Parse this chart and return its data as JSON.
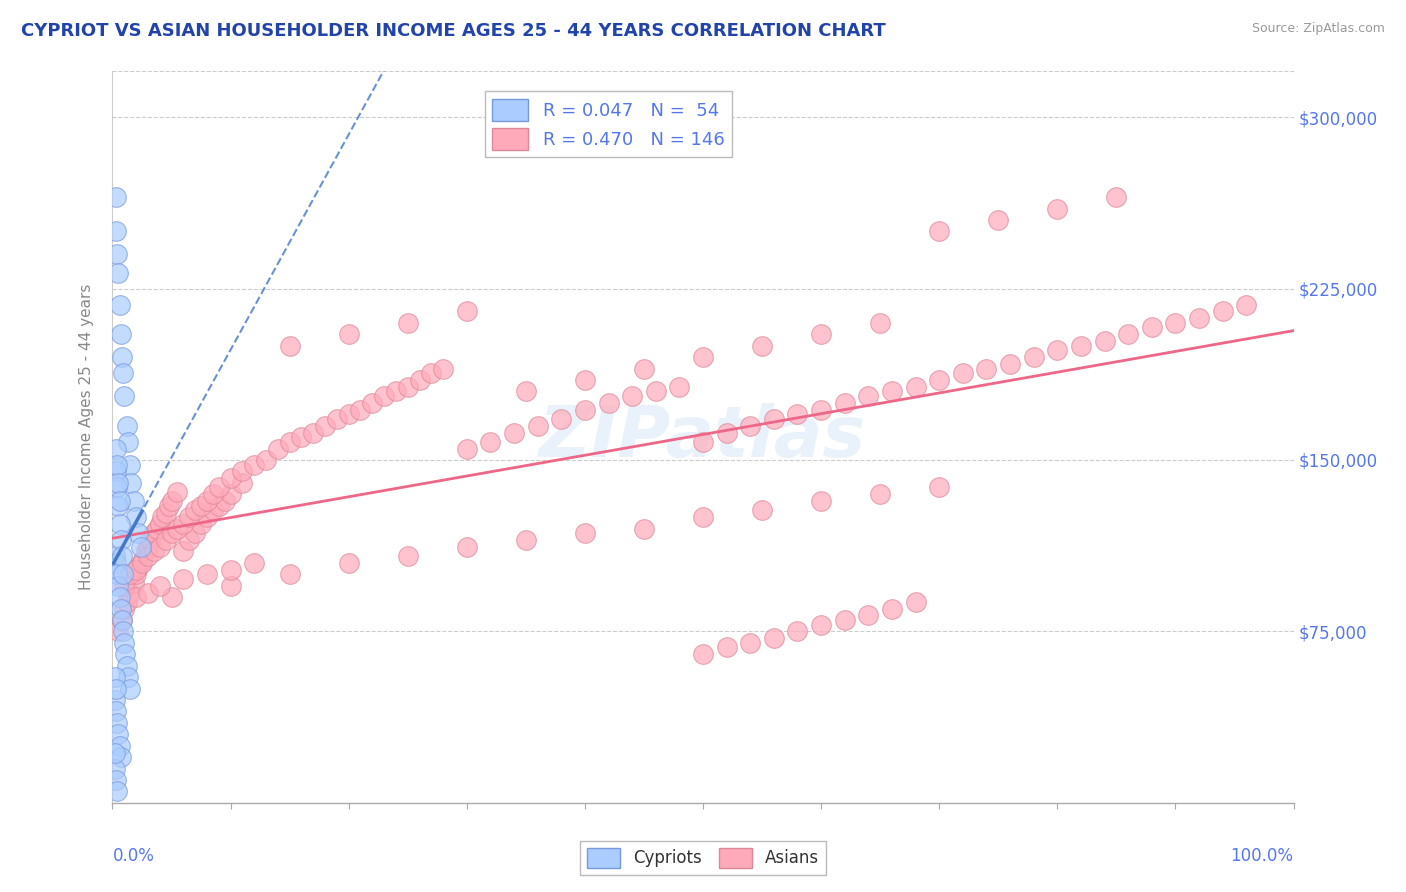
{
  "title": "CYPRIOT VS ASIAN HOUSEHOLDER INCOME AGES 25 - 44 YEARS CORRELATION CHART",
  "source": "Source: ZipAtlas.com",
  "ylabel": "Householder Income Ages 25 - 44 years",
  "y_tick_labels": [
    "$75,000",
    "$150,000",
    "$225,000",
    "$300,000"
  ],
  "y_tick_values": [
    75000,
    150000,
    225000,
    300000
  ],
  "ylim": [
    0,
    320000
  ],
  "xlim": [
    0,
    1.0
  ],
  "title_color": "#2244aa",
  "axis_label_color": "#5577ee",
  "cypriot_color": "#aaccff",
  "asian_color": "#ffaabb",
  "cypriot_edge_color": "#7799dd",
  "asian_edge_color": "#dd8899",
  "cypriot_line_color": "#4477cc",
  "asian_line_color": "#ee6688",
  "watermark": "ZIPatlas",
  "cypriot_x": [
    0.003,
    0.003,
    0.004,
    0.005,
    0.006,
    0.007,
    0.008,
    0.009,
    0.01,
    0.012,
    0.013,
    0.015,
    0.016,
    0.018,
    0.02,
    0.022,
    0.024,
    0.002,
    0.003,
    0.004,
    0.005,
    0.006,
    0.007,
    0.008,
    0.009,
    0.01,
    0.011,
    0.012,
    0.013,
    0.015,
    0.003,
    0.004,
    0.005,
    0.006,
    0.007,
    0.008,
    0.009,
    0.002,
    0.003,
    0.004,
    0.005,
    0.006,
    0.007,
    0.003,
    0.004,
    0.005,
    0.006,
    0.002,
    0.003,
    0.004,
    0.002,
    0.003,
    0.002
  ],
  "cypriot_y": [
    265000,
    250000,
    240000,
    232000,
    218000,
    205000,
    195000,
    188000,
    178000,
    165000,
    158000,
    148000,
    140000,
    132000,
    125000,
    118000,
    112000,
    108000,
    105000,
    100000,
    95000,
    90000,
    85000,
    80000,
    75000,
    70000,
    65000,
    60000,
    55000,
    50000,
    145000,
    138000,
    130000,
    122000,
    115000,
    108000,
    100000,
    45000,
    40000,
    35000,
    30000,
    25000,
    20000,
    155000,
    148000,
    140000,
    132000,
    15000,
    10000,
    5000,
    55000,
    50000,
    22000
  ],
  "asian_x": [
    0.005,
    0.008,
    0.01,
    0.012,
    0.015,
    0.018,
    0.02,
    0.022,
    0.025,
    0.028,
    0.03,
    0.032,
    0.035,
    0.038,
    0.04,
    0.042,
    0.045,
    0.048,
    0.05,
    0.055,
    0.06,
    0.065,
    0.07,
    0.075,
    0.08,
    0.085,
    0.09,
    0.095,
    0.1,
    0.11,
    0.01,
    0.015,
    0.02,
    0.025,
    0.03,
    0.035,
    0.04,
    0.045,
    0.05,
    0.055,
    0.06,
    0.065,
    0.07,
    0.075,
    0.08,
    0.085,
    0.09,
    0.1,
    0.11,
    0.12,
    0.13,
    0.14,
    0.15,
    0.16,
    0.17,
    0.18,
    0.19,
    0.2,
    0.21,
    0.22,
    0.23,
    0.24,
    0.25,
    0.26,
    0.27,
    0.28,
    0.3,
    0.32,
    0.34,
    0.36,
    0.38,
    0.4,
    0.42,
    0.44,
    0.46,
    0.48,
    0.5,
    0.52,
    0.54,
    0.56,
    0.58,
    0.6,
    0.62,
    0.64,
    0.66,
    0.68,
    0.7,
    0.72,
    0.74,
    0.76,
    0.78,
    0.8,
    0.82,
    0.84,
    0.86,
    0.88,
    0.9,
    0.92,
    0.94,
    0.96,
    0.15,
    0.2,
    0.25,
    0.3,
    0.35,
    0.4,
    0.45,
    0.5,
    0.55,
    0.6,
    0.65,
    0.7,
    0.75,
    0.8,
    0.85,
    0.05,
    0.1,
    0.15,
    0.2,
    0.25,
    0.3,
    0.35,
    0.4,
    0.45,
    0.5,
    0.55,
    0.6,
    0.65,
    0.7,
    0.02,
    0.03,
    0.04,
    0.06,
    0.08,
    0.1,
    0.12,
    0.5,
    0.52,
    0.54,
    0.56,
    0.58,
    0.6,
    0.62,
    0.64,
    0.66,
    0.68
  ],
  "asian_y": [
    75000,
    80000,
    85000,
    88000,
    92000,
    96000,
    100000,
    103000,
    106000,
    110000,
    112000,
    115000,
    118000,
    120000,
    122000,
    125000,
    127000,
    130000,
    132000,
    136000,
    110000,
    115000,
    118000,
    122000,
    125000,
    128000,
    130000,
    132000,
    135000,
    140000,
    95000,
    100000,
    102000,
    105000,
    108000,
    110000,
    112000,
    115000,
    118000,
    120000,
    122000,
    125000,
    128000,
    130000,
    132000,
    135000,
    138000,
    142000,
    145000,
    148000,
    150000,
    155000,
    158000,
    160000,
    162000,
    165000,
    168000,
    170000,
    172000,
    175000,
    178000,
    180000,
    182000,
    185000,
    188000,
    190000,
    155000,
    158000,
    162000,
    165000,
    168000,
    172000,
    175000,
    178000,
    180000,
    182000,
    158000,
    162000,
    165000,
    168000,
    170000,
    172000,
    175000,
    178000,
    180000,
    182000,
    185000,
    188000,
    190000,
    192000,
    195000,
    198000,
    200000,
    202000,
    205000,
    208000,
    210000,
    212000,
    215000,
    218000,
    200000,
    205000,
    210000,
    215000,
    180000,
    185000,
    190000,
    195000,
    200000,
    205000,
    210000,
    250000,
    255000,
    260000,
    265000,
    90000,
    95000,
    100000,
    105000,
    108000,
    112000,
    115000,
    118000,
    120000,
    125000,
    128000,
    132000,
    135000,
    138000,
    90000,
    92000,
    95000,
    98000,
    100000,
    102000,
    105000,
    65000,
    68000,
    70000,
    72000,
    75000,
    78000,
    80000,
    82000,
    85000,
    88000
  ]
}
